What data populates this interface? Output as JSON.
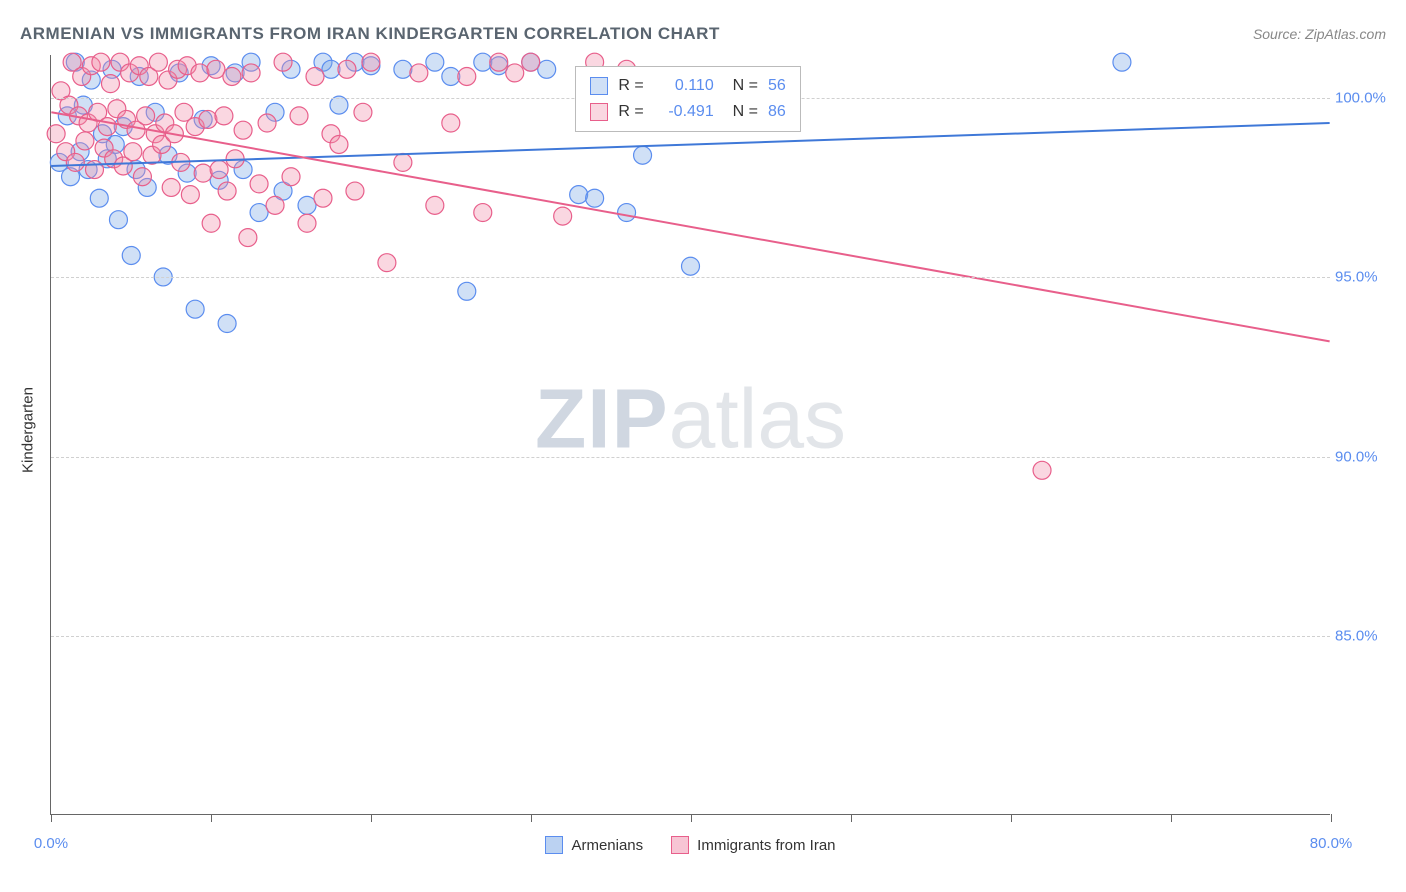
{
  "title": "ARMENIAN VS IMMIGRANTS FROM IRAN KINDERGARTEN CORRELATION CHART",
  "source": "Source: ZipAtlas.com",
  "y_axis_label": "Kindergarten",
  "watermark": {
    "zip": "ZIP",
    "atlas": "atlas"
  },
  "chart": {
    "type": "scatter",
    "background_color": "#ffffff",
    "grid_color": "#d0d0d0",
    "xlim": [
      0,
      80
    ],
    "ylim": [
      80,
      101.2
    ],
    "x_ticks": [
      0,
      10,
      20,
      30,
      40,
      50,
      60,
      70,
      80
    ],
    "x_tick_labels": {
      "0": "0.0%",
      "80": "80.0%"
    },
    "y_ticks": [
      85,
      90,
      95,
      100
    ],
    "y_tick_labels": {
      "85": "85.0%",
      "90": "90.0%",
      "95": "95.0%",
      "100": "100.0%"
    },
    "marker_radius": 9,
    "marker_stroke_width": 1.2,
    "line_width": 2,
    "series": [
      {
        "name": "Armenians",
        "fill": "rgba(120,165,230,0.35)",
        "stroke": "#5b8def",
        "line_color": "#3f78d8",
        "R": "0.110",
        "N": "56",
        "regression": {
          "x1": 0,
          "y1": 98.1,
          "x2": 80,
          "y2": 99.3
        },
        "points": [
          [
            0.5,
            98.2
          ],
          [
            1,
            99.5
          ],
          [
            1.2,
            97.8
          ],
          [
            1.5,
            101
          ],
          [
            1.8,
            98.5
          ],
          [
            2,
            99.8
          ],
          [
            2.3,
            98.0
          ],
          [
            2.5,
            100.5
          ],
          [
            3,
            97.2
          ],
          [
            3.2,
            99.0
          ],
          [
            3.5,
            98.3
          ],
          [
            3.8,
            100.8
          ],
          [
            4,
            98.7
          ],
          [
            4.2,
            96.6
          ],
          [
            4.5,
            99.2
          ],
          [
            5,
            95.6
          ],
          [
            5.3,
            98.0
          ],
          [
            5.5,
            100.6
          ],
          [
            6,
            97.5
          ],
          [
            6.5,
            99.6
          ],
          [
            7,
            95.0
          ],
          [
            7.3,
            98.4
          ],
          [
            8,
            100.7
          ],
          [
            8.5,
            97.9
          ],
          [
            9,
            94.1
          ],
          [
            9.5,
            99.4
          ],
          [
            10,
            100.9
          ],
          [
            10.5,
            97.7
          ],
          [
            11,
            93.7
          ],
          [
            11.5,
            100.7
          ],
          [
            12,
            98.0
          ],
          [
            12.5,
            101
          ],
          [
            13,
            96.8
          ],
          [
            14,
            99.6
          ],
          [
            14.5,
            97.4
          ],
          [
            15,
            100.8
          ],
          [
            16,
            97.0
          ],
          [
            17,
            101
          ],
          [
            17.5,
            100.8
          ],
          [
            18,
            99.8
          ],
          [
            19,
            101
          ],
          [
            20,
            100.9
          ],
          [
            22,
            100.8
          ],
          [
            24,
            101
          ],
          [
            25,
            100.6
          ],
          [
            26,
            94.6
          ],
          [
            27,
            101
          ],
          [
            28,
            100.9
          ],
          [
            30,
            101
          ],
          [
            31,
            100.8
          ],
          [
            33,
            97.3
          ],
          [
            34,
            97.2
          ],
          [
            36,
            96.8
          ],
          [
            37,
            98.4
          ],
          [
            40,
            95.3
          ],
          [
            67,
            101
          ]
        ]
      },
      {
        "name": "Immigrants from Iran",
        "fill": "rgba(240,140,170,0.35)",
        "stroke": "#e85f8b",
        "line_color": "#e85f8b",
        "R": "-0.491",
        "N": "86",
        "regression": {
          "x1": 0,
          "y1": 99.6,
          "x2": 80,
          "y2": 93.2
        },
        "points": [
          [
            0.3,
            99.0
          ],
          [
            0.6,
            100.2
          ],
          [
            0.9,
            98.5
          ],
          [
            1.1,
            99.8
          ],
          [
            1.3,
            101
          ],
          [
            1.5,
            98.2
          ],
          [
            1.7,
            99.5
          ],
          [
            1.9,
            100.6
          ],
          [
            2.1,
            98.8
          ],
          [
            2.3,
            99.3
          ],
          [
            2.5,
            100.9
          ],
          [
            2.7,
            98.0
          ],
          [
            2.9,
            99.6
          ],
          [
            3.1,
            101
          ],
          [
            3.3,
            98.6
          ],
          [
            3.5,
            99.2
          ],
          [
            3.7,
            100.4
          ],
          [
            3.9,
            98.3
          ],
          [
            4.1,
            99.7
          ],
          [
            4.3,
            101
          ],
          [
            4.5,
            98.1
          ],
          [
            4.7,
            99.4
          ],
          [
            4.9,
            100.7
          ],
          [
            5.1,
            98.5
          ],
          [
            5.3,
            99.1
          ],
          [
            5.5,
            100.9
          ],
          [
            5.7,
            97.8
          ],
          [
            5.9,
            99.5
          ],
          [
            6.1,
            100.6
          ],
          [
            6.3,
            98.4
          ],
          [
            6.5,
            99.0
          ],
          [
            6.7,
            101
          ],
          [
            6.9,
            98.7
          ],
          [
            7.1,
            99.3
          ],
          [
            7.3,
            100.5
          ],
          [
            7.5,
            97.5
          ],
          [
            7.7,
            99.0
          ],
          [
            7.9,
            100.8
          ],
          [
            8.1,
            98.2
          ],
          [
            8.3,
            99.6
          ],
          [
            8.5,
            100.9
          ],
          [
            8.7,
            97.3
          ],
          [
            9,
            99.2
          ],
          [
            9.3,
            100.7
          ],
          [
            9.5,
            97.9
          ],
          [
            9.8,
            99.4
          ],
          [
            10,
            96.5
          ],
          [
            10.3,
            100.8
          ],
          [
            10.5,
            98.0
          ],
          [
            10.8,
            99.5
          ],
          [
            11,
            97.4
          ],
          [
            11.3,
            100.6
          ],
          [
            11.5,
            98.3
          ],
          [
            12,
            99.1
          ],
          [
            12.3,
            96.1
          ],
          [
            12.5,
            100.7
          ],
          [
            13,
            97.6
          ],
          [
            13.5,
            99.3
          ],
          [
            14,
            97.0
          ],
          [
            14.5,
            101
          ],
          [
            15,
            97.8
          ],
          [
            15.5,
            99.5
          ],
          [
            16,
            96.5
          ],
          [
            16.5,
            100.6
          ],
          [
            17,
            97.2
          ],
          [
            17.5,
            99.0
          ],
          [
            18,
            98.7
          ],
          [
            18.5,
            100.8
          ],
          [
            19,
            97.4
          ],
          [
            19.5,
            99.6
          ],
          [
            20,
            101
          ],
          [
            21,
            95.4
          ],
          [
            22,
            98.2
          ],
          [
            23,
            100.7
          ],
          [
            24,
            97.0
          ],
          [
            25,
            99.3
          ],
          [
            26,
            100.6
          ],
          [
            27,
            96.8
          ],
          [
            28,
            101
          ],
          [
            29,
            100.7
          ],
          [
            30,
            101
          ],
          [
            32,
            96.7
          ],
          [
            34,
            101
          ],
          [
            36,
            100.8
          ],
          [
            62,
            89.6
          ]
        ]
      }
    ],
    "top_legend": {
      "left_pct": 41,
      "top_pct": 1.5
    }
  },
  "bottom_legend": [
    {
      "label": "Armenians",
      "fill": "rgba(120,165,230,0.5)",
      "border": "#5b8def"
    },
    {
      "label": "Immigrants from Iran",
      "fill": "rgba(240,140,170,0.5)",
      "border": "#e85f8b"
    }
  ]
}
